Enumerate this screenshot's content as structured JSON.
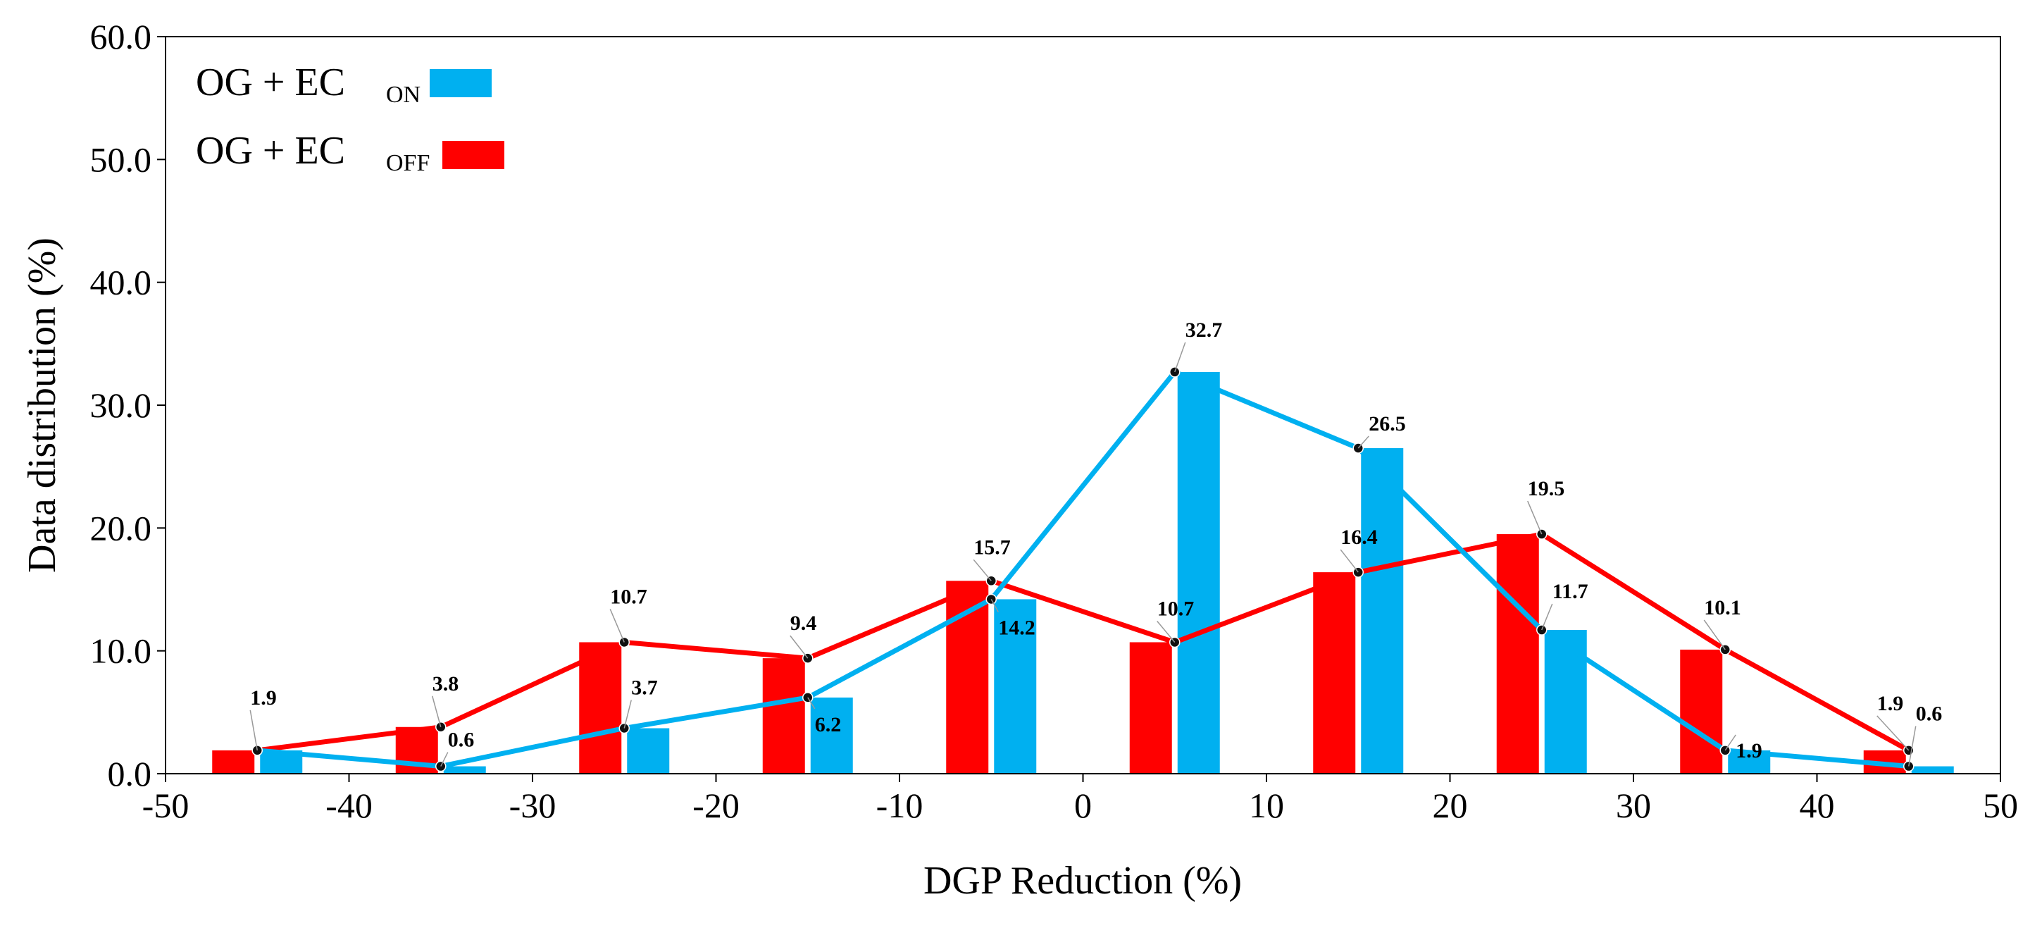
{
  "chart_data": {
    "type": "bar",
    "xlabel": "DGP Reduction (%)",
    "ylabel": "Data distribution (%)",
    "xlim": [
      -50,
      50
    ],
    "ylim": [
      0,
      60
    ],
    "x_ticks": [
      "-50",
      "-40",
      "-30",
      "-20",
      "-10",
      "0",
      "10",
      "20",
      "30",
      "40",
      "50"
    ],
    "y_ticks": [
      "0.0",
      "10.0",
      "20.0",
      "30.0",
      "40.0",
      "50.0",
      "60.0"
    ],
    "x": [
      -45,
      -35,
      -25,
      -15,
      -5,
      5,
      15,
      25,
      35,
      45
    ],
    "series": [
      {
        "name": "OG + EC_ON",
        "legend_main": "OG + EC",
        "legend_sub": "ON",
        "color": "#00b0f0",
        "values": [
          1.9,
          0.6,
          3.7,
          6.2,
          14.2,
          32.7,
          26.5,
          11.7,
          1.9,
          0.6
        ],
        "labels": [
          "",
          "0.6",
          "3.7",
          "6.2",
          "14.2",
          "32.7",
          "26.5",
          "11.7",
          "1.9",
          "0.6"
        ]
      },
      {
        "name": "OG + EC_OFF",
        "legend_main": "OG + EC",
        "legend_sub": "OFF",
        "color": "#ff0000",
        "values": [
          1.9,
          3.8,
          10.7,
          9.4,
          15.7,
          10.7,
          16.4,
          19.5,
          10.1,
          1.9
        ],
        "labels": [
          "1.9",
          "3.8",
          "10.7",
          "9.4",
          "15.7",
          "10.7",
          "16.4",
          "19.5",
          "10.1",
          "1.9"
        ]
      }
    ],
    "legend_position": "top-left",
    "grid": false
  }
}
